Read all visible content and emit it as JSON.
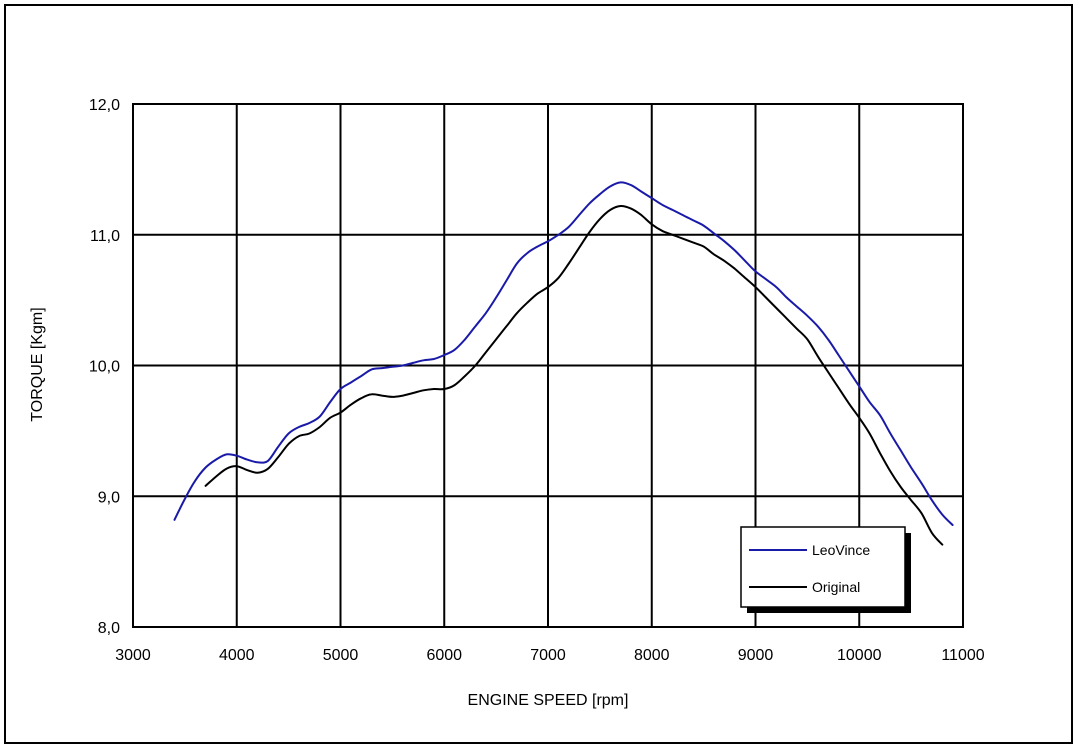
{
  "chart_data": {
    "type": "line",
    "xlabel": "ENGINE SPEED [rpm]",
    "ylabel": "TORQUE [Kgm]",
    "xlim": [
      3000,
      11000
    ],
    "ylim": [
      8.0,
      12.0
    ],
    "x_ticks": [
      "3000",
      "4000",
      "5000",
      "6000",
      "7000",
      "8000",
      "9000",
      "10000",
      "11000"
    ],
    "y_ticks": [
      "8,0",
      "9,0",
      "10,0",
      "11,0",
      "12,0"
    ],
    "grid": true,
    "legend_position": "bottom-right",
    "series": [
      {
        "name": "LeoVince",
        "color": "#1a1aa8",
        "x": [
          3400,
          3500,
          3600,
          3700,
          3800,
          3900,
          4000,
          4100,
          4200,
          4300,
          4400,
          4500,
          4600,
          4700,
          4800,
          4900,
          5000,
          5100,
          5200,
          5300,
          5400,
          5500,
          5600,
          5700,
          5800,
          5900,
          6000,
          6100,
          6200,
          6300,
          6400,
          6500,
          6600,
          6700,
          6800,
          6900,
          7000,
          7100,
          7200,
          7300,
          7400,
          7500,
          7600,
          7700,
          7800,
          7900,
          8000,
          8100,
          8200,
          8300,
          8400,
          8500,
          8600,
          8700,
          8800,
          8900,
          9000,
          9100,
          9200,
          9300,
          9400,
          9500,
          9600,
          9700,
          9800,
          9900,
          10000,
          10100,
          10200,
          10300,
          10400,
          10500,
          10600,
          10700,
          10800,
          10900
        ],
        "values": [
          8.82,
          8.98,
          9.12,
          9.22,
          9.28,
          9.32,
          9.31,
          9.28,
          9.26,
          9.27,
          9.38,
          9.48,
          9.53,
          9.56,
          9.61,
          9.72,
          9.82,
          9.87,
          9.92,
          9.97,
          9.98,
          9.99,
          10.0,
          10.02,
          10.04,
          10.05,
          10.08,
          10.12,
          10.2,
          10.3,
          10.4,
          10.52,
          10.65,
          10.78,
          10.86,
          10.91,
          10.95,
          11.0,
          11.06,
          11.15,
          11.24,
          11.31,
          11.37,
          11.4,
          11.38,
          11.33,
          11.28,
          11.23,
          11.19,
          11.15,
          11.11,
          11.07,
          11.01,
          10.95,
          10.88,
          10.8,
          10.72,
          10.66,
          10.6,
          10.52,
          10.45,
          10.38,
          10.3,
          10.2,
          10.08,
          9.96,
          9.84,
          9.72,
          9.62,
          9.48,
          9.35,
          9.22,
          9.1,
          8.97,
          8.86,
          8.78
        ]
      },
      {
        "name": "Original",
        "color": "#000000",
        "x": [
          3700,
          3800,
          3900,
          4000,
          4100,
          4200,
          4300,
          4400,
          4500,
          4600,
          4700,
          4800,
          4900,
          5000,
          5100,
          5200,
          5300,
          5400,
          5500,
          5600,
          5700,
          5800,
          5900,
          6000,
          6100,
          6200,
          6300,
          6400,
          6500,
          6600,
          6700,
          6800,
          6900,
          7000,
          7100,
          7200,
          7300,
          7400,
          7500,
          7600,
          7700,
          7800,
          7900,
          8000,
          8100,
          8200,
          8300,
          8400,
          8500,
          8600,
          8700,
          8800,
          8900,
          9000,
          9100,
          9200,
          9300,
          9400,
          9500,
          9600,
          9700,
          9800,
          9900,
          10000,
          10100,
          10200,
          10300,
          10400,
          10500,
          10600,
          10700,
          10800
        ],
        "values": [
          9.08,
          9.15,
          9.21,
          9.23,
          9.2,
          9.18,
          9.21,
          9.3,
          9.4,
          9.46,
          9.48,
          9.53,
          9.6,
          9.64,
          9.7,
          9.75,
          9.78,
          9.77,
          9.76,
          9.77,
          9.79,
          9.81,
          9.82,
          9.82,
          9.85,
          9.92,
          10.0,
          10.1,
          10.2,
          10.3,
          10.4,
          10.48,
          10.55,
          10.6,
          10.67,
          10.78,
          10.9,
          11.02,
          11.12,
          11.19,
          11.22,
          11.2,
          11.15,
          11.08,
          11.03,
          11.0,
          10.97,
          10.94,
          10.91,
          10.85,
          10.8,
          10.74,
          10.67,
          10.6,
          10.52,
          10.44,
          10.36,
          10.28,
          10.2,
          10.07,
          9.95,
          9.83,
          9.71,
          9.6,
          9.48,
          9.33,
          9.19,
          9.07,
          8.97,
          8.87,
          8.72,
          8.63
        ]
      }
    ]
  }
}
